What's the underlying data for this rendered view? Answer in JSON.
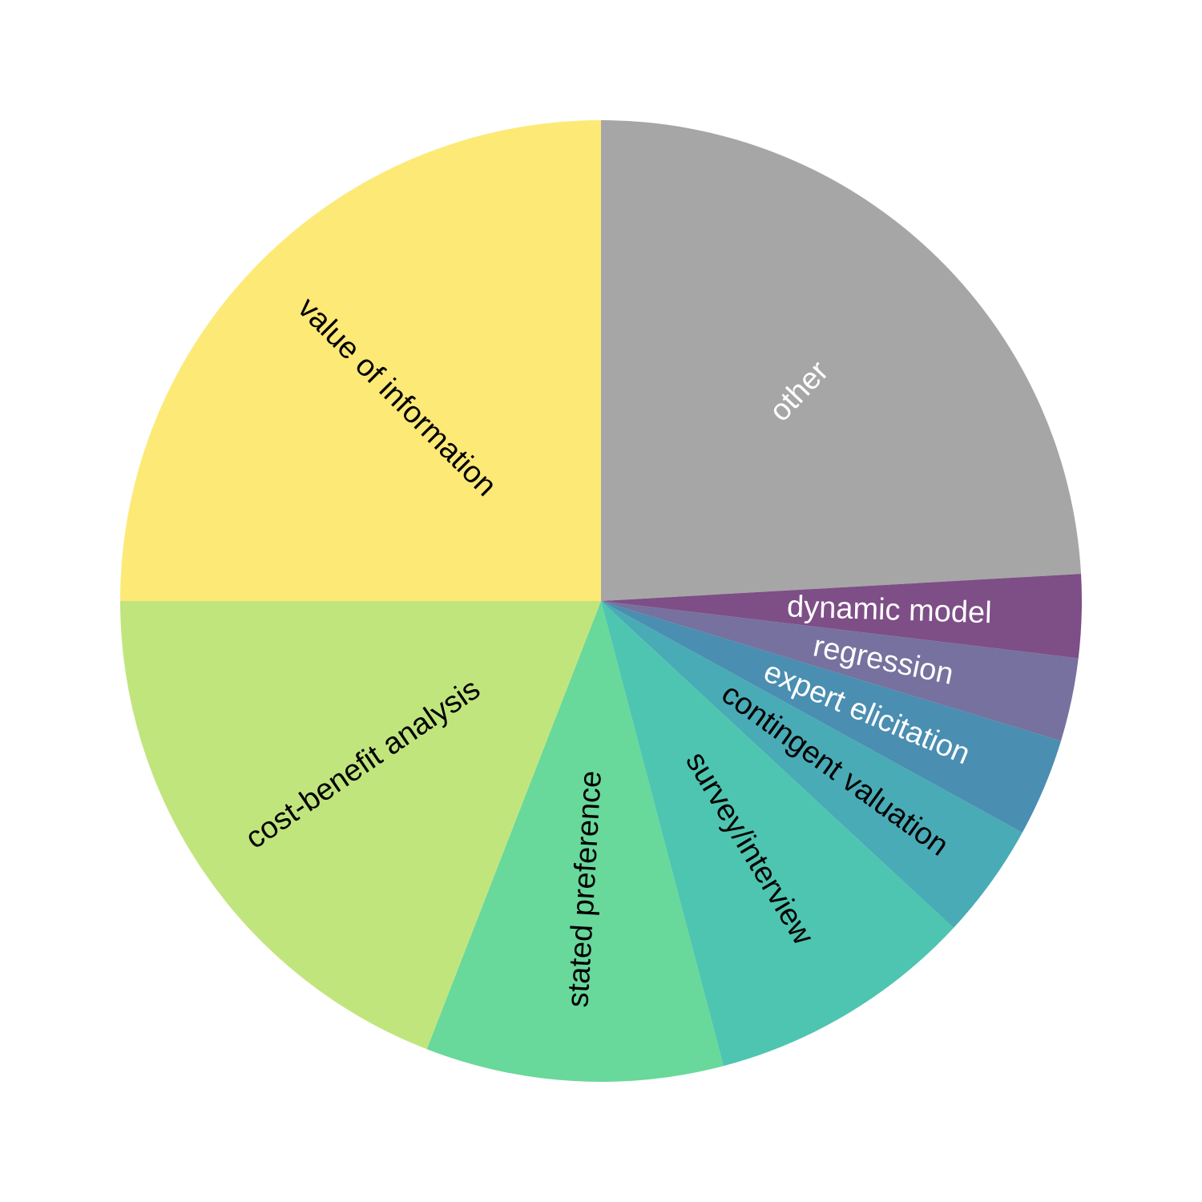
{
  "chart_data": {
    "type": "pie",
    "title": "",
    "start_angle_deg": 90,
    "direction": "clockwise",
    "slices": [
      {
        "label": "other",
        "value": 24.1,
        "color": "#a6a6a6",
        "text_color": "#ffffff"
      },
      {
        "label": "dynamic model",
        "value": 2.8,
        "color": "#7e4e87",
        "text_color": "#ffffff"
      },
      {
        "label": "regression",
        "value": 2.8,
        "color": "#76719e",
        "text_color": "#ffffff"
      },
      {
        "label": "expert elicitation",
        "value": 3.3,
        "color": "#4a8eb1",
        "text_color": "#ffffff"
      },
      {
        "label": "contingent valuation",
        "value": 3.9,
        "color": "#49abb5",
        "text_color": "#000000"
      },
      {
        "label": "survey/interview",
        "value": 9.0,
        "color": "#4ec5b0",
        "text_color": "#000000"
      },
      {
        "label": "stated preference",
        "value": 10.0,
        "color": "#68d89b",
        "text_color": "#000000"
      },
      {
        "label": "cost-benefit analysis",
        "value": 19.1,
        "color": "#c1e57d",
        "text_color": "#000000"
      },
      {
        "label": "value of information",
        "value": 25.0,
        "color": "#fde976",
        "text_color": "#000000"
      }
    ]
  }
}
